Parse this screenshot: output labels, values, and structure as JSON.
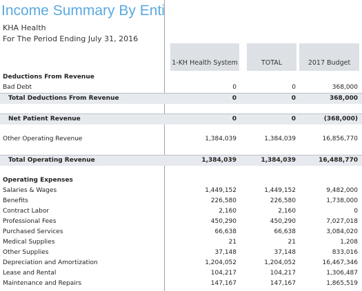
{
  "header": {
    "title": "Income Summary By Entity",
    "entity": "KHA Health",
    "period": "For The Period Ending July 31, 2016"
  },
  "table": {
    "columns": [
      "1-KH Health System",
      "TOTAL",
      "2017 Budget"
    ],
    "rows": [
      {
        "label": "Deductions From Revenue",
        "values": []
      },
      {
        "label": "Bad Debt",
        "values": [
          "0",
          "0",
          "368,000"
        ]
      },
      {
        "label": "Total Deductions From Revenue",
        "values": [
          "0",
          "0",
          "368,000"
        ]
      },
      {
        "label": "Net Patient Revenue",
        "values": [
          "0",
          "0",
          "(368,000)"
        ]
      },
      {
        "label": "Other Operating Revenue",
        "values": [
          "1,384,039",
          "1,384,039",
          "16,856,770"
        ]
      },
      {
        "label": "Total Operating Revenue",
        "values": [
          "1,384,039",
          "1,384,039",
          "16,488,770"
        ]
      },
      {
        "label": "Operating Expenses",
        "values": []
      },
      {
        "label": "Salaries & Wages",
        "values": [
          "1,449,152",
          "1,449,152",
          "9,482,000"
        ]
      },
      {
        "label": "Benefits",
        "values": [
          "226,580",
          "226,580",
          "1,738,000"
        ]
      },
      {
        "label": "Contract Labor",
        "values": [
          "2,160",
          "2,160",
          "0"
        ]
      },
      {
        "label": "Professional Fees",
        "values": [
          "450,290",
          "450,290",
          "7,027,018"
        ]
      },
      {
        "label": "Purchased Services",
        "values": [
          "66,638",
          "66,638",
          "3,084,020"
        ]
      },
      {
        "label": "Medical Supplies",
        "values": [
          "21",
          "21",
          "1,208"
        ]
      },
      {
        "label": "Other Supplies",
        "values": [
          "37,148",
          "37,148",
          "833,016"
        ]
      },
      {
        "label": "Depreciation and Amortization",
        "values": [
          "1,204,052",
          "1,204,052",
          "16,467,346"
        ]
      },
      {
        "label": "Lease and Rental",
        "values": [
          "104,217",
          "104,217",
          "1,306,487"
        ]
      },
      {
        "label": "Maintenance and Repairs",
        "values": [
          "147,167",
          "147,167",
          "1,865,519"
        ]
      }
    ]
  }
}
